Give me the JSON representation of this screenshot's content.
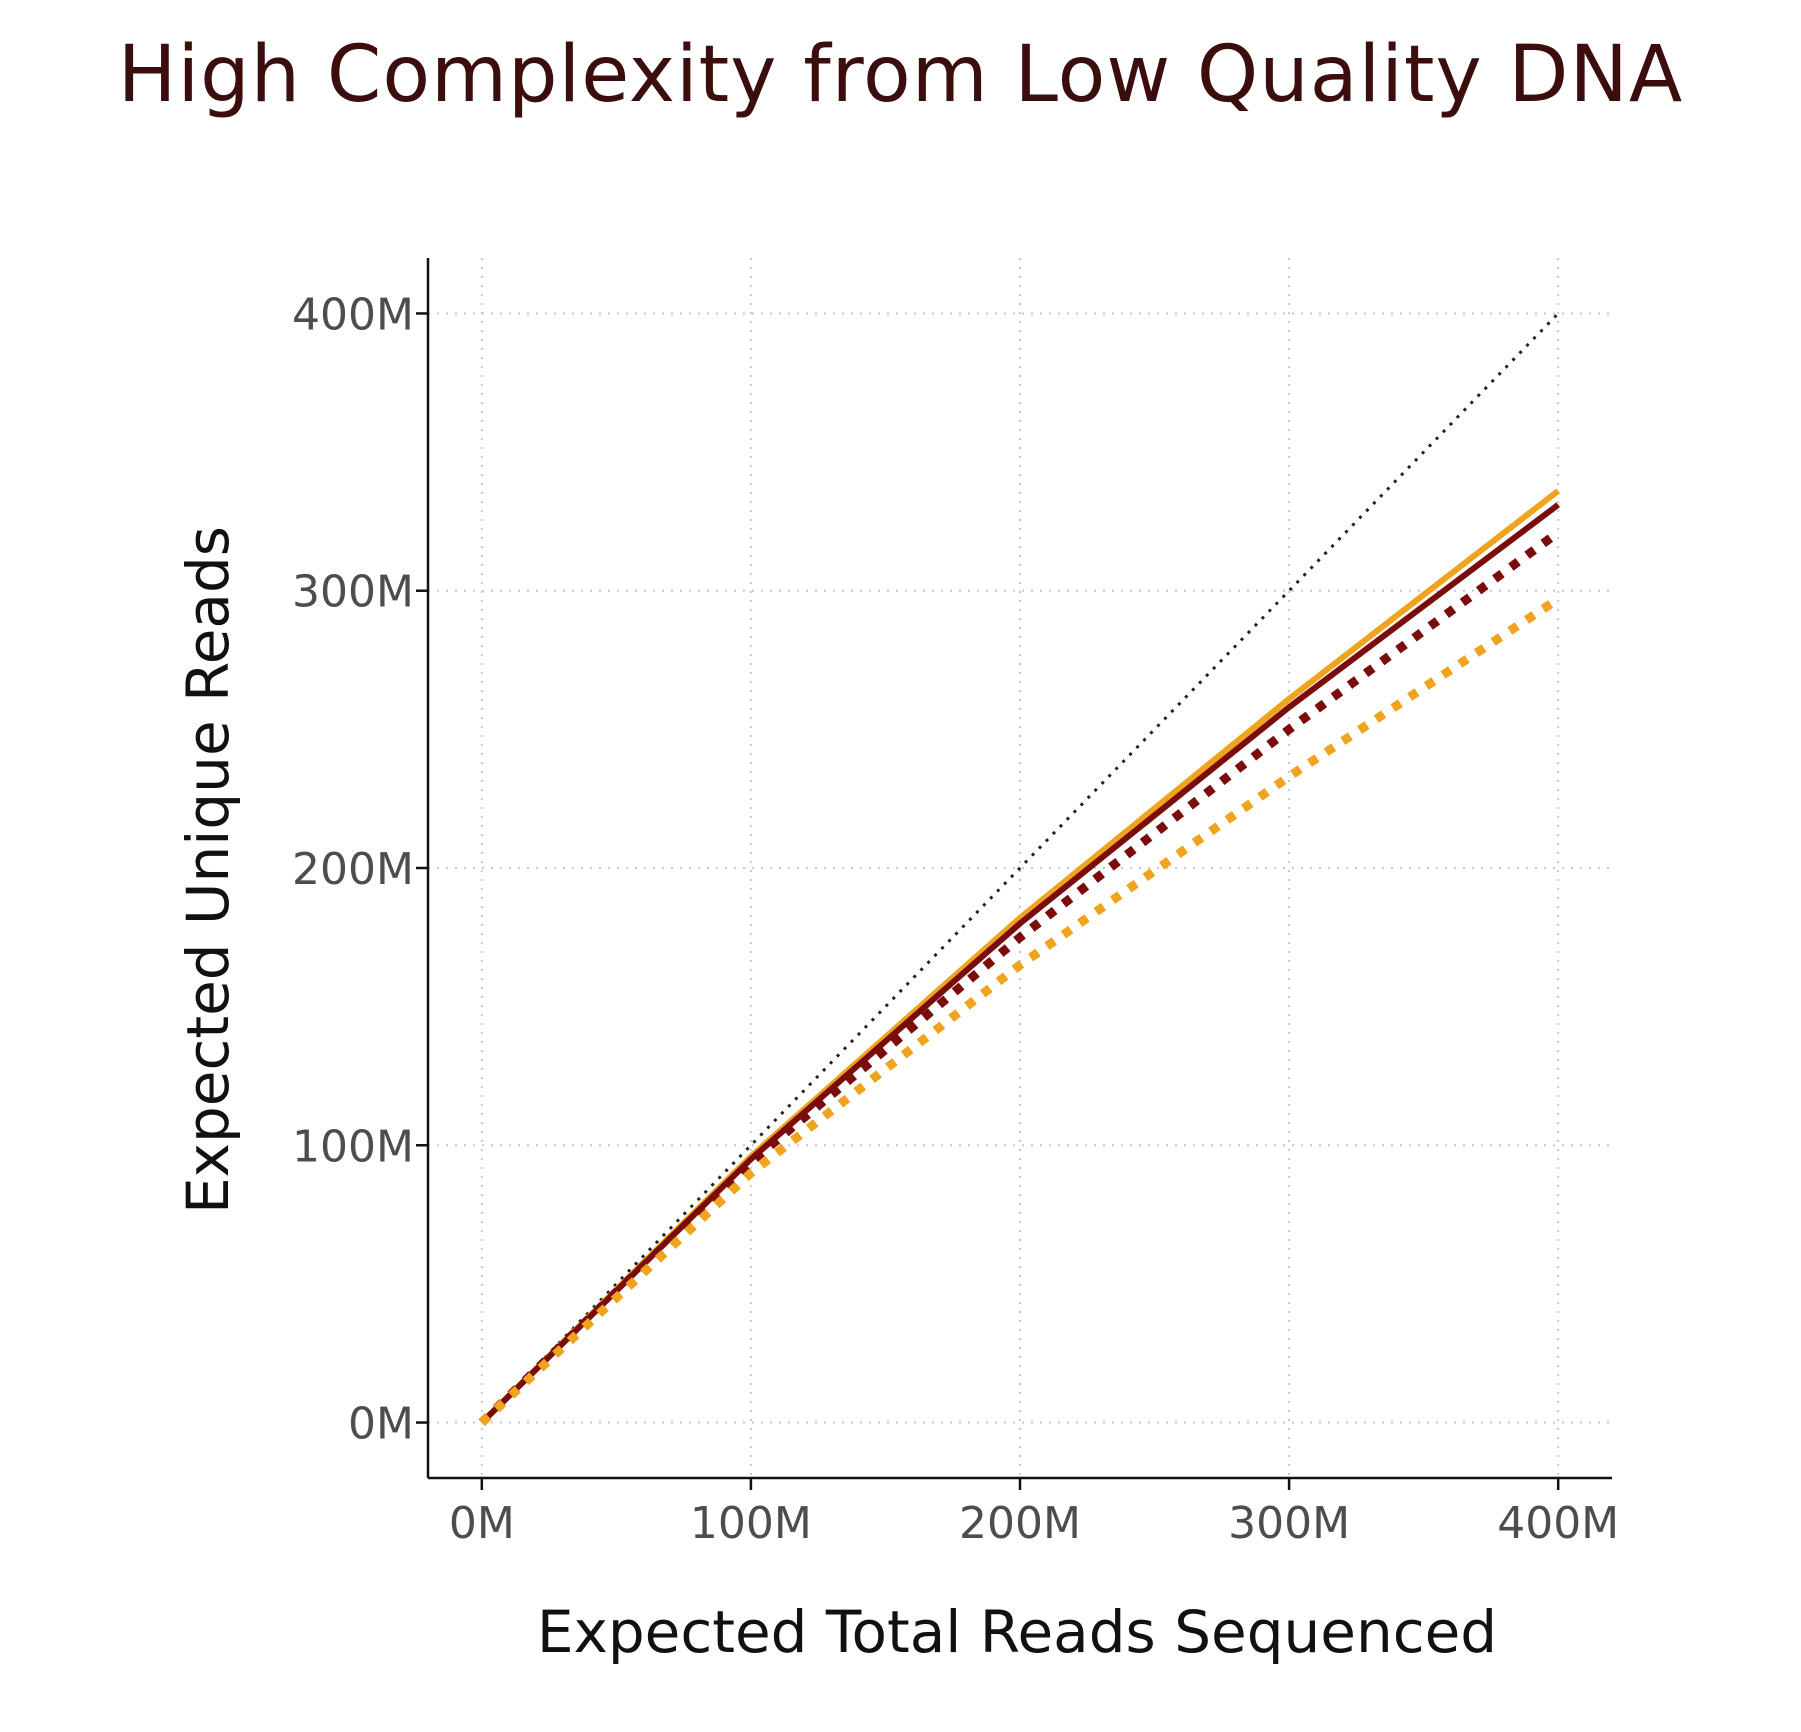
{
  "chart_data": {
    "type": "line",
    "title": "High Complexity from Low Quality DNA",
    "xlabel": "Expected Total Reads Sequenced",
    "ylabel": "Expected Unique Reads",
    "xlim": [
      -20,
      420
    ],
    "ylim": [
      -20,
      420
    ],
    "x_ticks": [
      0,
      100,
      200,
      300,
      400
    ],
    "y_ticks": [
      0,
      100,
      200,
      300,
      400
    ],
    "x_tick_labels": [
      "0M",
      "100M",
      "200M",
      "300M",
      "400M"
    ],
    "y_tick_labels": [
      "0M",
      "100M",
      "200M",
      "300M",
      "400M"
    ],
    "grid": true,
    "series": [
      {
        "color": "#222222",
        "style": "dotted-thin",
        "x": [
          0,
          400
        ],
        "y": [
          0,
          400
        ]
      },
      {
        "color": "#f0a31c",
        "style": "solid",
        "x": [
          0,
          100,
          200,
          300,
          400
        ],
        "y": [
          0,
          96,
          182,
          261,
          336
        ]
      },
      {
        "color": "#7a0c0c",
        "style": "solid",
        "x": [
          0,
          100,
          200,
          300,
          400
        ],
        "y": [
          0,
          95,
          180,
          258,
          331
        ]
      },
      {
        "color": "#7a0c0c",
        "style": "dotted-thick",
        "x": [
          0,
          100,
          200,
          300,
          400
        ],
        "y": [
          0,
          94,
          175,
          250,
          321
        ]
      },
      {
        "color": "#f0a31c",
        "style": "dotted-thick",
        "x": [
          0,
          100,
          200,
          300,
          400
        ],
        "y": [
          0,
          90,
          165,
          233,
          297
        ]
      }
    ]
  }
}
